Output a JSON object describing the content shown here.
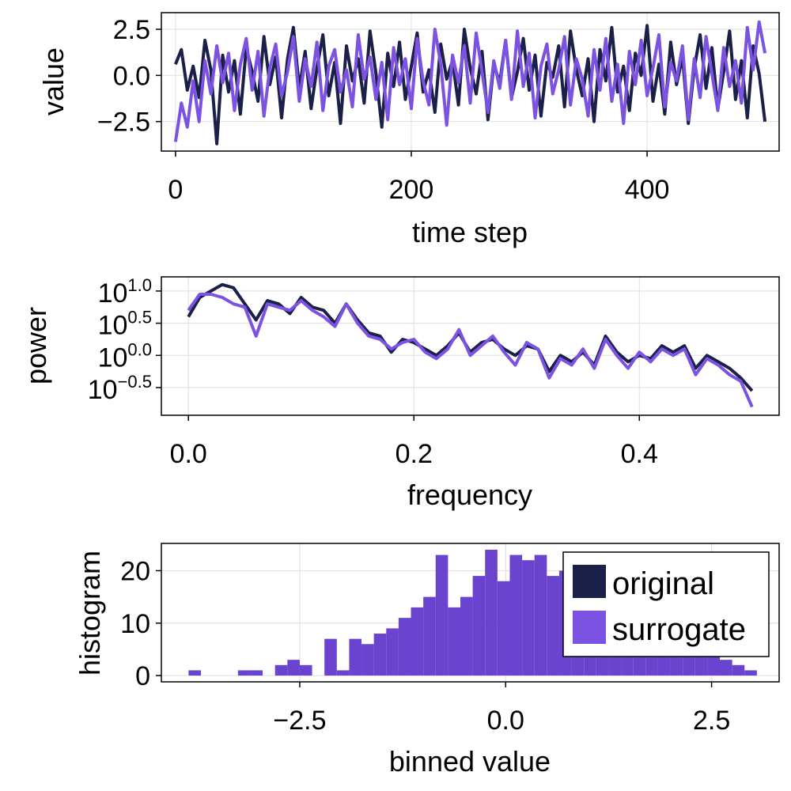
{
  "colors": {
    "original": "#1b2048",
    "surrogate": "#7c52e3",
    "overlap": "#6a43cf",
    "grid": "#e3e3e3"
  },
  "chart_data": [
    {
      "type": "line",
      "xlabel": "time step",
      "ylabel": "value",
      "xlim": [
        -12,
        512
      ],
      "ylim": [
        -4.1,
        3.4
      ],
      "xticks": [
        0,
        200,
        400
      ],
      "xtick_labels": [
        "0",
        "200",
        "400"
      ],
      "yticks": [
        -2.5,
        0.0,
        2.5
      ],
      "ytick_labels": [
        "−2.5",
        "0.0",
        "2.5"
      ],
      "grid": true,
      "series": [
        {
          "name": "original",
          "x": [
            0,
            5,
            10,
            15,
            20,
            25,
            30,
            35,
            40,
            45,
            50,
            55,
            60,
            65,
            70,
            75,
            80,
            85,
            90,
            95,
            100,
            105,
            110,
            115,
            120,
            125,
            130,
            135,
            140,
            145,
            150,
            155,
            160,
            165,
            170,
            175,
            180,
            185,
            190,
            195,
            200,
            205,
            210,
            215,
            220,
            225,
            230,
            235,
            240,
            245,
            250,
            255,
            260,
            265,
            270,
            275,
            280,
            285,
            290,
            295,
            300,
            305,
            310,
            315,
            320,
            325,
            330,
            335,
            340,
            345,
            350,
            355,
            360,
            365,
            370,
            375,
            380,
            385,
            390,
            395,
            400,
            405,
            410,
            415,
            420,
            425,
            430,
            435,
            440,
            445,
            450,
            455,
            460,
            465,
            470,
            475,
            480,
            485,
            490,
            495,
            500
          ],
          "y": [
            0.6,
            1.4,
            -0.8,
            0.5,
            -1.2,
            1.9,
            0.3,
            -3.7,
            1.1,
            -0.9,
            0.8,
            -2.1,
            1.5,
            0.2,
            -1.4,
            2.1,
            -0.5,
            1.0,
            -2.3,
            0.9,
            2.6,
            -0.7,
            1.3,
            -1.8,
            0.4,
            2.2,
            -1.1,
            0.7,
            -2.6,
            1.6,
            -0.3,
            0.9,
            -1.5,
            2.4,
            0.1,
            -2.8,
            1.2,
            -0.6,
            1.8,
            -1.3,
            0.5,
            2.3,
            -0.9,
            0.3,
            -2.0,
            1.7,
            -0.2,
            0.8,
            -1.6,
            2.5,
            0.4,
            -1.0,
            1.3,
            -2.4,
            0.6,
            -0.4,
            1.9,
            -1.2,
            0.2,
            2.0,
            -0.8,
            1.1,
            -2.2,
            0.7,
            -0.1,
            1.6,
            -1.7,
            2.4,
            0.3,
            -1.1,
            0.9,
            -2.5,
            1.4,
            -0.3,
            2.6,
            -0.9,
            0.5,
            -1.9,
            1.2,
            0.0,
            2.7,
            -1.4,
            0.6,
            -2.1,
            1.8,
            -0.5,
            1.0,
            -2.6,
            0.4,
            2.2,
            -0.7,
            1.5,
            -1.8,
            0.2,
            2.4,
            -1.3,
            0.8,
            -2.3,
            1.6,
            0.1,
            -2.5
          ]
        },
        {
          "name": "surrogate",
          "x": [
            0,
            5,
            10,
            15,
            20,
            25,
            30,
            35,
            40,
            45,
            50,
            55,
            60,
            65,
            70,
            75,
            80,
            85,
            90,
            95,
            100,
            105,
            110,
            115,
            120,
            125,
            130,
            135,
            140,
            145,
            150,
            155,
            160,
            165,
            170,
            175,
            180,
            185,
            190,
            195,
            200,
            205,
            210,
            215,
            220,
            225,
            230,
            235,
            240,
            245,
            250,
            255,
            260,
            265,
            270,
            275,
            280,
            285,
            290,
            295,
            300,
            305,
            310,
            315,
            320,
            325,
            330,
            335,
            340,
            345,
            350,
            355,
            360,
            365,
            370,
            375,
            380,
            385,
            390,
            395,
            400,
            405,
            410,
            415,
            420,
            425,
            430,
            435,
            440,
            445,
            450,
            455,
            460,
            465,
            470,
            475,
            480,
            485,
            490,
            495,
            500
          ],
          "y": [
            -3.6,
            -1.5,
            -2.8,
            -0.3,
            -2.5,
            0.8,
            -1.0,
            1.6,
            -0.4,
            1.2,
            -1.9,
            0.6,
            2.0,
            -0.8,
            1.3,
            -2.2,
            0.4,
            1.7,
            -1.1,
            0.2,
            2.1,
            -1.4,
            0.9,
            -0.6,
            1.8,
            -1.9,
            0.5,
            1.4,
            -0.9,
            0.3,
            -1.7,
            2.2,
            -0.2,
            1.0,
            -1.3,
            0.7,
            -2.4,
            1.5,
            -0.5,
            0.9,
            -1.8,
            2.0,
            -0.3,
            -1.6,
            2.5,
            0.6,
            -2.7,
            1.1,
            -0.4,
            1.6,
            -1.5,
            2.3,
            0.2,
            -2.0,
            0.8,
            -0.7,
            1.9,
            -1.3,
            2.4,
            -0.6,
            1.2,
            -2.3,
            0.5,
            1.7,
            -1.0,
            0.3,
            2.1,
            -1.6,
            0.9,
            -0.2,
            -2.2,
            1.4,
            -0.8,
            2.0,
            -1.4,
            0.6,
            -2.6,
            1.3,
            -0.5,
            1.9,
            -1.1,
            0.4,
            2.2,
            -1.7,
            0.7,
            -0.3,
            1.6,
            -2.4,
            0.9,
            -1.2,
            2.1,
            0.1,
            -1.9,
            1.5,
            -0.6,
            0.8,
            -1.5,
            2.6,
            0.3,
            2.9,
            1.2
          ]
        }
      ]
    },
    {
      "type": "line",
      "xlabel": "frequency",
      "ylabel": "power",
      "yscale": "log10",
      "xlim": [
        -0.024,
        0.524
      ],
      "ylim": [
        -0.93,
        1.22
      ],
      "xticks": [
        0.0,
        0.2,
        0.4
      ],
      "xtick_labels": [
        "0.0",
        "0.2",
        "0.4"
      ],
      "yticks": [
        1.0,
        0.5,
        0.0,
        -0.5
      ],
      "ytick_base": "10",
      "ytick_exponents": [
        "1.0",
        "0.5",
        "0.0",
        "−0.5"
      ],
      "grid": true,
      "series": [
        {
          "name": "original",
          "x": [
            0.0,
            0.01,
            0.02,
            0.03,
            0.04,
            0.05,
            0.06,
            0.07,
            0.08,
            0.09,
            0.1,
            0.11,
            0.12,
            0.13,
            0.14,
            0.15,
            0.16,
            0.17,
            0.18,
            0.19,
            0.2,
            0.21,
            0.22,
            0.23,
            0.24,
            0.25,
            0.26,
            0.27,
            0.28,
            0.29,
            0.3,
            0.31,
            0.32,
            0.33,
            0.34,
            0.35,
            0.36,
            0.37,
            0.38,
            0.39,
            0.4,
            0.41,
            0.42,
            0.43,
            0.44,
            0.45,
            0.46,
            0.47,
            0.48,
            0.49,
            0.5
          ],
          "y": [
            0.6,
            0.9,
            1.0,
            1.1,
            1.05,
            0.8,
            0.55,
            0.85,
            0.8,
            0.65,
            0.9,
            0.75,
            0.7,
            0.5,
            0.8,
            0.55,
            0.35,
            0.3,
            0.05,
            0.25,
            0.2,
            0.1,
            0.0,
            0.15,
            0.35,
            0.05,
            0.2,
            0.25,
            0.1,
            0.0,
            0.15,
            0.1,
            -0.25,
            0.0,
            -0.1,
            0.05,
            -0.15,
            0.3,
            0.05,
            -0.1,
            0.0,
            -0.05,
            0.15,
            0.05,
            0.15,
            -0.2,
            0.0,
            -0.1,
            -0.2,
            -0.35,
            -0.55
          ]
        },
        {
          "name": "surrogate",
          "x": [
            0.0,
            0.01,
            0.02,
            0.03,
            0.04,
            0.05,
            0.06,
            0.07,
            0.08,
            0.09,
            0.1,
            0.11,
            0.12,
            0.13,
            0.14,
            0.15,
            0.16,
            0.17,
            0.18,
            0.19,
            0.2,
            0.21,
            0.22,
            0.23,
            0.24,
            0.25,
            0.26,
            0.27,
            0.28,
            0.29,
            0.3,
            0.31,
            0.32,
            0.33,
            0.34,
            0.35,
            0.36,
            0.37,
            0.38,
            0.39,
            0.4,
            0.41,
            0.42,
            0.43,
            0.44,
            0.45,
            0.46,
            0.47,
            0.48,
            0.49,
            0.5
          ],
          "y": [
            0.7,
            0.95,
            0.95,
            0.9,
            0.8,
            0.75,
            0.3,
            0.8,
            0.75,
            0.7,
            0.85,
            0.7,
            0.6,
            0.45,
            0.8,
            0.5,
            0.3,
            0.25,
            0.1,
            0.2,
            0.25,
            0.05,
            -0.05,
            0.1,
            0.4,
            0.0,
            0.15,
            0.3,
            0.05,
            -0.15,
            0.2,
            0.1,
            -0.35,
            -0.05,
            -0.15,
            0.1,
            -0.2,
            0.25,
            0.0,
            -0.2,
            0.05,
            -0.1,
            0.1,
            0.0,
            0.1,
            -0.3,
            -0.05,
            -0.15,
            -0.3,
            -0.4,
            -0.8
          ]
        }
      ]
    },
    {
      "type": "bar",
      "xlabel": "binned value",
      "ylabel": "histogram",
      "xlim": [
        -4.18,
        3.32
      ],
      "ylim": [
        -1.2,
        25.2
      ],
      "xticks": [
        -2.5,
        0.0,
        2.5
      ],
      "xtick_labels": [
        "−2.5",
        "0.0",
        "2.5"
      ],
      "yticks": [
        0,
        10,
        20
      ],
      "ytick_labels": [
        "0",
        "10",
        "20"
      ],
      "grid": true,
      "bin_edges": [
        -3.85,
        -3.7,
        -3.55,
        -3.4,
        -3.25,
        -3.1,
        -2.95,
        -2.8,
        -2.65,
        -2.5,
        -2.35,
        -2.2,
        -2.05,
        -1.9,
        -1.75,
        -1.6,
        -1.45,
        -1.3,
        -1.15,
        -1.0,
        -0.85,
        -0.7,
        -0.55,
        -0.4,
        -0.25,
        -0.1,
        0.05,
        0.2,
        0.35,
        0.5,
        0.65,
        0.8,
        0.95,
        1.1,
        1.25,
        1.4,
        1.55,
        1.7,
        1.85,
        2.0,
        2.15,
        2.3,
        2.45,
        2.6,
        2.75,
        2.9,
        3.05
      ],
      "series": [
        {
          "name": "original",
          "values": [
            1,
            0,
            0,
            0,
            1,
            1,
            0,
            2,
            3,
            2,
            0,
            7,
            1,
            7,
            6,
            8,
            9,
            11,
            13,
            15,
            23,
            13,
            15,
            19,
            24,
            18,
            23,
            22,
            23,
            19,
            20,
            21,
            19,
            18,
            17,
            16,
            14,
            13,
            12,
            11,
            9,
            7,
            5,
            3,
            2,
            1
          ]
        },
        {
          "name": "surrogate",
          "values": [
            1,
            0,
            0,
            0,
            1,
            1,
            0,
            2,
            3,
            2,
            0,
            7,
            1,
            7,
            6,
            8,
            9,
            11,
            13,
            15,
            23,
            13,
            15,
            19,
            24,
            18,
            23,
            22,
            23,
            19,
            20,
            21,
            19,
            18,
            17,
            16,
            14,
            13,
            12,
            11,
            9,
            7,
            5,
            3,
            2,
            1
          ]
        }
      ],
      "legend": {
        "position": "top-right",
        "entries": [
          "original",
          "surrogate"
        ]
      }
    }
  ]
}
